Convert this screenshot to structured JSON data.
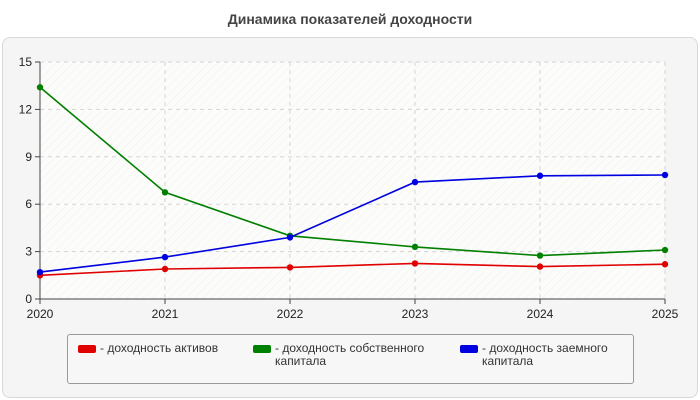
{
  "chart_data": {
    "type": "line",
    "title": "Динамика показателей доходности",
    "x": [
      "2020",
      "2021",
      "2022",
      "2023",
      "2024",
      "2025"
    ],
    "ylim": [
      0,
      15
    ],
    "yticks": [
      "0",
      "3",
      "6",
      "9",
      "12",
      "15"
    ],
    "grid": true,
    "legend_position": "bottom",
    "series": [
      {
        "name": "- доходность активов",
        "color": "#e00000",
        "values": [
          1.5,
          1.9,
          2.0,
          2.25,
          2.05,
          2.2
        ]
      },
      {
        "name": "- доходность собственного капитала",
        "color": "#008000",
        "values": [
          13.4,
          6.75,
          4.0,
          3.3,
          2.75,
          3.1
        ]
      },
      {
        "name": "- доходность заемного капитала",
        "color": "#0000e0",
        "values": [
          1.7,
          2.65,
          3.9,
          7.4,
          7.8,
          7.85
        ]
      }
    ]
  }
}
